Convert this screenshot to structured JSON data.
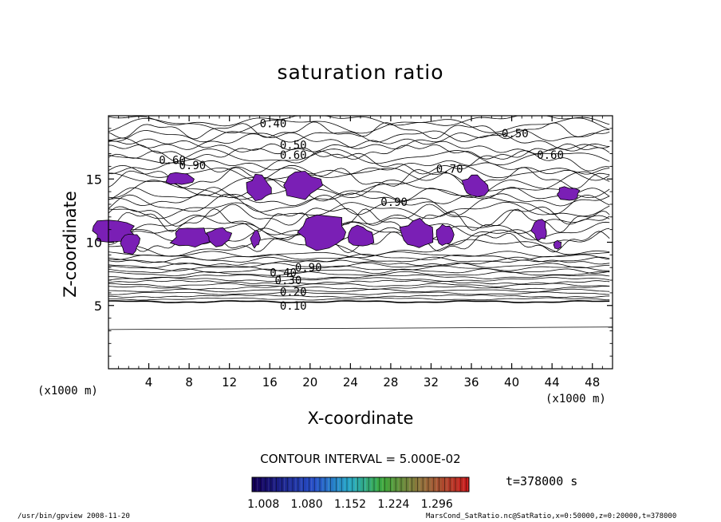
{
  "chart_data": {
    "type": "contour",
    "title": "saturation ratio",
    "xlabel": "X-coordinate",
    "ylabel": "Z-coordinate",
    "x_unit_label": "(x1000 m)",
    "x_ticks": [
      4,
      8,
      12,
      16,
      20,
      24,
      28,
      32,
      36,
      40,
      44,
      48
    ],
    "y_ticks": [
      5,
      10,
      15
    ],
    "xlim": [
      0,
      50
    ],
    "ylim": [
      0,
      20
    ],
    "contour_interval_text": "CONTOUR INTERVAL = 5.000E-02",
    "contour_labels": [
      "0.40",
      "0.50",
      "0.50",
      "0.60",
      "0.60",
      "0.60",
      "0.90",
      "0.70",
      "0.90",
      "0.90",
      "0.40",
      "0.30",
      "0.20",
      "0.10"
    ],
    "colorbar_ticks": [
      "1.008",
      "1.080",
      "1.152",
      "1.224",
      "1.296"
    ],
    "time_text": "t=378000 s",
    "supersaturated_color": "#7a1fb5"
  },
  "footer": {
    "command": "/usr/bin/gpview   2008-11-20",
    "file": "MarsCond_SatRatio.nc@SatRatio,x=0:50000,z=0:20000,t=378000"
  }
}
